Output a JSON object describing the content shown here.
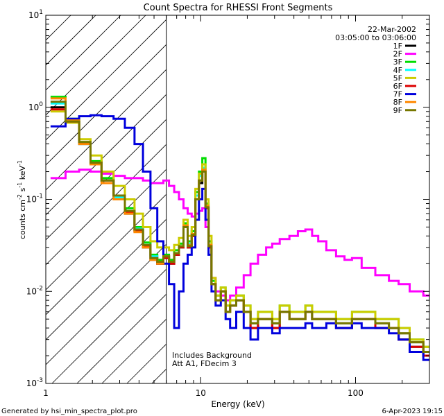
{
  "chart_data": {
    "type": "line",
    "title": "Count Spectra for RHESSI Front Segments",
    "xlabel": "Energy (keV)",
    "ylabel": "counts cm",
    "ylabel_sup1": "-2",
    "ylabel_mid": " s",
    "ylabel_sup2": "-1",
    "ylabel_tail": " keV",
    "ylabel_sup3": "-1",
    "xscale": "log",
    "yscale": "log",
    "xlim": [
      1,
      300
    ],
    "ylim": [
      0.001,
      10
    ],
    "x_ticks": [
      {
        "value": 1,
        "label": "1"
      },
      {
        "value": 10,
        "label": "10"
      },
      {
        "value": 100,
        "label": "100"
      }
    ],
    "y_ticks": [
      {
        "value": 0.001,
        "base": "10",
        "exp": "-3"
      },
      {
        "value": 0.01,
        "base": "10",
        "exp": "-2"
      },
      {
        "value": 0.1,
        "base": "10",
        "exp": "-1"
      },
      {
        "value": 1,
        "base": "10",
        "exp": "0"
      },
      {
        "value": 10,
        "base": "10",
        "exp": "1"
      }
    ],
    "hatched_region": {
      "x_from": 1,
      "x_to": 6
    },
    "annotations": {
      "date": "22-Mar-2002",
      "time_range": "03:05:00 to 03:06:00",
      "note1": "Includes Background",
      "note2": "Att A1, FDecim 3"
    },
    "series": [
      {
        "name": "1F",
        "color": "#000000",
        "energies": [
          1.2,
          1.5,
          1.8,
          2.1,
          2.5,
          3,
          3.5,
          4,
          4.5,
          5,
          5.5,
          6,
          6.5,
          7,
          7.5,
          8,
          8.5,
          9,
          9.5,
          10,
          10.5,
          11,
          11.5,
          12,
          13,
          14,
          15,
          16,
          18,
          20,
          22,
          25,
          28,
          30,
          35,
          40,
          45,
          50,
          55,
          60,
          70,
          80,
          90,
          100,
          120,
          150,
          180,
          200,
          250,
          300
        ],
        "counts": [
          1.0,
          0.7,
          0.4,
          0.25,
          0.16,
          0.11,
          0.07,
          0.045,
          0.03,
          0.022,
          0.02,
          0.024,
          0.02,
          0.025,
          0.03,
          0.05,
          0.03,
          0.04,
          0.1,
          0.15,
          0.2,
          0.08,
          0.03,
          0.012,
          0.008,
          0.01,
          0.006,
          0.007,
          0.008,
          0.006,
          0.004,
          0.005,
          0.005,
          0.004,
          0.006,
          0.005,
          0.005,
          0.006,
          0.005,
          0.005,
          0.005,
          0.004,
          0.004,
          0.005,
          0.005,
          0.004,
          0.004,
          0.003,
          0.0025,
          0.002
        ]
      },
      {
        "name": "2F",
        "color": "#ff00ff",
        "energies": [
          1.2,
          1.5,
          1.8,
          2.1,
          2.5,
          3,
          3.5,
          4,
          4.5,
          5,
          5.5,
          6,
          6.5,
          7,
          7.5,
          8,
          8.5,
          9,
          9.5,
          10,
          10.5,
          11,
          11.5,
          12,
          13,
          14,
          15,
          16,
          18,
          20,
          22,
          25,
          28,
          30,
          35,
          40,
          45,
          50,
          55,
          60,
          70,
          80,
          90,
          100,
          120,
          150,
          180,
          200,
          250,
          300
        ],
        "counts": [
          0.17,
          0.2,
          0.21,
          0.2,
          0.19,
          0.18,
          0.17,
          0.17,
          0.16,
          0.15,
          0.15,
          0.16,
          0.14,
          0.12,
          0.1,
          0.08,
          0.07,
          0.065,
          0.07,
          0.075,
          0.08,
          0.05,
          0.03,
          0.014,
          0.01,
          0.009,
          0.008,
          0.009,
          0.011,
          0.015,
          0.02,
          0.025,
          0.03,
          0.033,
          0.037,
          0.04,
          0.045,
          0.047,
          0.04,
          0.035,
          0.028,
          0.024,
          0.022,
          0.023,
          0.018,
          0.015,
          0.013,
          0.012,
          0.01,
          0.009
        ]
      },
      {
        "name": "3F",
        "color": "#00dd00",
        "energies": [
          1.2,
          1.5,
          1.8,
          2.1,
          2.5,
          3,
          3.5,
          4,
          4.5,
          5,
          5.5,
          6,
          6.5,
          7,
          7.5,
          8,
          8.5,
          9,
          9.5,
          10,
          10.5,
          11,
          11.5,
          12,
          13,
          14,
          15,
          16,
          18,
          20,
          22,
          25,
          28,
          30,
          35,
          40,
          45,
          50,
          55,
          60,
          70,
          80,
          90,
          100,
          120,
          150,
          180,
          200,
          250,
          300
        ],
        "counts": [
          1.3,
          0.75,
          0.42,
          0.26,
          0.17,
          0.11,
          0.08,
          0.05,
          0.034,
          0.025,
          0.022,
          0.025,
          0.022,
          0.028,
          0.033,
          0.055,
          0.035,
          0.045,
          0.12,
          0.2,
          0.28,
          0.09,
          0.035,
          0.013,
          0.009,
          0.011,
          0.007,
          0.008,
          0.009,
          0.007,
          0.005,
          0.006,
          0.006,
          0.005,
          0.007,
          0.006,
          0.006,
          0.007,
          0.006,
          0.006,
          0.006,
          0.005,
          0.005,
          0.006,
          0.006,
          0.005,
          0.005,
          0.004,
          0.003,
          0.0025
        ]
      },
      {
        "name": "4F",
        "color": "#00ffff",
        "energies": [
          1.2,
          1.5,
          1.8,
          2.1,
          2.5,
          3,
          3.5,
          4,
          4.5,
          5,
          5.5,
          6,
          6.5,
          7,
          7.5,
          8,
          8.5,
          9,
          9.5,
          10,
          10.5,
          11,
          11.5,
          12,
          13,
          14,
          15,
          16,
          18,
          20,
          22,
          25,
          28,
          30,
          35,
          40,
          45,
          50,
          55,
          60,
          70,
          80,
          90,
          100,
          120,
          150,
          180,
          200,
          250,
          300
        ],
        "counts": [
          1.1,
          0.72,
          0.4,
          0.25,
          0.16,
          0.105,
          0.075,
          0.048,
          0.032,
          0.024,
          0.021,
          0.023,
          0.021,
          0.026,
          0.03,
          0.052,
          0.033,
          0.042,
          0.11,
          0.18,
          0.22,
          0.085,
          0.032,
          0.012,
          0.008,
          0.01,
          0.006,
          0.007,
          0.008,
          0.006,
          0.0045,
          0.005,
          0.005,
          0.0045,
          0.006,
          0.005,
          0.005,
          0.006,
          0.005,
          0.005,
          0.005,
          0.0045,
          0.0045,
          0.005,
          0.005,
          0.0045,
          0.004,
          0.0035,
          0.0028,
          0.0022
        ]
      },
      {
        "name": "5F",
        "color": "#cccc00",
        "energies": [
          1.2,
          1.5,
          1.8,
          2.1,
          2.5,
          3,
          3.5,
          4,
          4.5,
          5,
          5.5,
          6,
          6.5,
          7,
          7.5,
          8,
          8.5,
          9,
          9.5,
          10,
          10.5,
          11,
          11.5,
          12,
          13,
          14,
          15,
          16,
          18,
          20,
          22,
          25,
          28,
          30,
          35,
          40,
          45,
          50,
          55,
          60,
          70,
          80,
          90,
          100,
          120,
          150,
          180,
          200,
          250,
          300
        ],
        "counts": [
          0.9,
          0.68,
          0.45,
          0.3,
          0.2,
          0.14,
          0.1,
          0.07,
          0.05,
          0.035,
          0.03,
          0.03,
          0.028,
          0.032,
          0.038,
          0.06,
          0.04,
          0.05,
          0.13,
          0.19,
          0.24,
          0.1,
          0.04,
          0.014,
          0.009,
          0.011,
          0.007,
          0.008,
          0.009,
          0.007,
          0.005,
          0.006,
          0.006,
          0.005,
          0.007,
          0.006,
          0.006,
          0.007,
          0.006,
          0.006,
          0.006,
          0.005,
          0.005,
          0.006,
          0.006,
          0.005,
          0.005,
          0.004,
          0.003,
          0.0025
        ]
      },
      {
        "name": "6F",
        "color": "#dd0000",
        "energies": [
          1.2,
          1.5,
          1.8,
          2.1,
          2.5,
          3,
          3.5,
          4,
          4.5,
          5,
          5.5,
          6,
          6.5,
          7,
          7.5,
          8,
          8.5,
          9,
          9.5,
          10,
          10.5,
          11,
          11.5,
          12,
          13,
          14,
          15,
          16,
          18,
          20,
          22,
          25,
          28,
          30,
          35,
          40,
          45,
          50,
          55,
          60,
          70,
          80,
          90,
          100,
          120,
          150,
          180,
          200,
          250,
          300
        ],
        "counts": [
          0.95,
          0.7,
          0.41,
          0.25,
          0.16,
          0.11,
          0.072,
          0.046,
          0.031,
          0.023,
          0.02,
          0.023,
          0.02,
          0.025,
          0.03,
          0.05,
          0.03,
          0.04,
          0.1,
          0.16,
          0.2,
          0.08,
          0.03,
          0.012,
          0.008,
          0.01,
          0.006,
          0.007,
          0.008,
          0.006,
          0.004,
          0.005,
          0.005,
          0.004,
          0.006,
          0.005,
          0.005,
          0.006,
          0.005,
          0.005,
          0.005,
          0.004,
          0.004,
          0.005,
          0.005,
          0.004,
          0.004,
          0.003,
          0.0025,
          0.002
        ]
      },
      {
        "name": "7F",
        "color": "#0000dd",
        "energies": [
          1.2,
          1.5,
          1.8,
          2.1,
          2.5,
          3,
          3.5,
          4,
          4.5,
          5,
          5.5,
          6,
          6.5,
          7,
          7.5,
          8,
          8.5,
          9,
          9.5,
          10,
          10.5,
          11,
          11.5,
          12,
          13,
          14,
          15,
          16,
          18,
          20,
          22,
          25,
          28,
          30,
          35,
          40,
          45,
          50,
          55,
          60,
          70,
          80,
          90,
          100,
          120,
          150,
          180,
          200,
          250,
          300
        ],
        "counts": [
          0.62,
          0.75,
          0.8,
          0.82,
          0.8,
          0.75,
          0.6,
          0.4,
          0.2,
          0.08,
          0.035,
          0.02,
          0.012,
          0.004,
          0.01,
          0.02,
          0.025,
          0.03,
          0.06,
          0.1,
          0.13,
          0.06,
          0.025,
          0.01,
          0.007,
          0.008,
          0.005,
          0.004,
          0.006,
          0.004,
          0.003,
          0.004,
          0.004,
          0.0035,
          0.004,
          0.004,
          0.004,
          0.0045,
          0.004,
          0.004,
          0.0045,
          0.004,
          0.004,
          0.0045,
          0.004,
          0.004,
          0.0035,
          0.003,
          0.0022,
          0.0018
        ]
      },
      {
        "name": "8F",
        "color": "#ff8800",
        "energies": [
          1.2,
          1.5,
          1.8,
          2.1,
          2.5,
          3,
          3.5,
          4,
          4.5,
          5,
          5.5,
          6,
          6.5,
          7,
          7.5,
          8,
          8.5,
          9,
          9.5,
          10,
          10.5,
          11,
          11.5,
          12,
          13,
          14,
          15,
          16,
          18,
          20,
          22,
          25,
          28,
          30,
          35,
          40,
          45,
          50,
          55,
          60,
          70,
          80,
          90,
          100,
          120,
          150,
          180,
          200,
          250,
          300
        ],
        "counts": [
          1.25,
          0.72,
          0.4,
          0.24,
          0.15,
          0.1,
          0.07,
          0.044,
          0.03,
          0.022,
          0.02,
          0.024,
          0.021,
          0.026,
          0.031,
          0.052,
          0.032,
          0.042,
          0.1,
          0.16,
          0.21,
          0.085,
          0.032,
          0.012,
          0.008,
          0.01,
          0.006,
          0.007,
          0.008,
          0.006,
          0.0045,
          0.005,
          0.005,
          0.0045,
          0.006,
          0.005,
          0.005,
          0.006,
          0.005,
          0.005,
          0.005,
          0.0045,
          0.0045,
          0.005,
          0.005,
          0.0045,
          0.004,
          0.0035,
          0.0028,
          0.0022
        ]
      },
      {
        "name": "9F",
        "color": "#777700",
        "energies": [
          1.2,
          1.5,
          1.8,
          2.1,
          2.5,
          3,
          3.5,
          4,
          4.5,
          5,
          5.5,
          6,
          6.5,
          7,
          7.5,
          8,
          8.5,
          9,
          9.5,
          10,
          10.5,
          11,
          11.5,
          12,
          13,
          14,
          15,
          16,
          18,
          20,
          22,
          25,
          28,
          30,
          35,
          40,
          45,
          50,
          55,
          60,
          70,
          80,
          90,
          100,
          120,
          150,
          180,
          200,
          250,
          300
        ],
        "counts": [
          1.15,
          0.7,
          0.42,
          0.25,
          0.16,
          0.11,
          0.075,
          0.047,
          0.032,
          0.023,
          0.021,
          0.024,
          0.021,
          0.026,
          0.031,
          0.05,
          0.031,
          0.041,
          0.1,
          0.16,
          0.2,
          0.082,
          0.031,
          0.012,
          0.008,
          0.01,
          0.006,
          0.007,
          0.008,
          0.006,
          0.0045,
          0.005,
          0.005,
          0.0045,
          0.006,
          0.005,
          0.005,
          0.006,
          0.005,
          0.005,
          0.005,
          0.0045,
          0.0045,
          0.005,
          0.005,
          0.0045,
          0.004,
          0.0035,
          0.0028,
          0.0022
        ]
      }
    ]
  },
  "footer": {
    "generated_by": "Generated by hsi_min_spectra_plot.pro",
    "timestamp": "6-Apr-2023 19:15"
  }
}
